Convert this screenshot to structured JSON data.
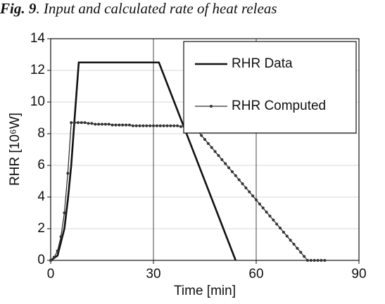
{
  "chart_data": {
    "type": "line",
    "title": [
      "Fig. 9",
      ". Input and calculated rate of heat releas"
    ],
    "x_label": "Time [min]",
    "y_label": "RHR [10⁶W]",
    "xlim": [
      0,
      90
    ],
    "xticks": [
      0,
      30,
      60,
      90
    ],
    "ylim": [
      0,
      14
    ],
    "yticks": [
      0,
      2,
      4,
      6,
      8,
      10,
      12,
      14
    ],
    "grid": true,
    "legend": "top-right",
    "series": [
      {
        "name": "RHR Data",
        "color": "#111111",
        "markers": false,
        "x": [
          0,
          2,
          4,
          5,
          6,
          7,
          8.2,
          31.6,
          54
        ],
        "values": [
          0,
          0.3,
          2,
          3.8,
          6,
          9,
          12.5,
          12.5,
          0
        ]
      },
      {
        "name": "RHR Computed",
        "color": "#333333",
        "markers": true,
        "x": [
          0,
          1,
          2,
          3,
          4,
          5,
          6,
          7,
          8,
          9,
          10,
          11,
          12,
          13,
          14,
          15,
          16,
          17,
          18,
          19,
          20,
          21,
          22,
          23,
          24,
          25,
          26,
          27,
          28,
          29,
          30,
          31,
          32,
          33,
          34,
          35,
          36,
          37,
          38,
          39,
          40,
          41,
          42,
          43,
          44,
          45,
          46,
          47,
          48,
          49,
          50,
          51,
          52,
          53,
          54,
          55,
          56,
          57,
          58,
          59,
          60,
          61,
          62,
          63,
          64,
          65,
          66,
          67,
          68,
          69,
          70,
          71,
          72,
          73,
          74,
          75,
          76,
          77,
          78,
          79,
          80
        ],
        "values": [
          0,
          0.2,
          0.6,
          1.5,
          3,
          5.5,
          8.7,
          8.7,
          8.7,
          8.7,
          8.7,
          8.65,
          8.65,
          8.6,
          8.6,
          8.6,
          8.6,
          8.6,
          8.55,
          8.55,
          8.55,
          8.55,
          8.55,
          8.55,
          8.5,
          8.5,
          8.5,
          8.5,
          8.5,
          8.5,
          8.5,
          8.5,
          8.5,
          8.5,
          8.5,
          8.5,
          8.5,
          8.5,
          8.45,
          8.45,
          8.45,
          8.4,
          8.4,
          8.15,
          7.89,
          7.64,
          7.38,
          7.13,
          6.87,
          6.62,
          6.36,
          6.11,
          5.85,
          5.6,
          5.35,
          5.09,
          4.84,
          4.58,
          4.33,
          4.07,
          3.82,
          3.56,
          3.31,
          3.05,
          2.8,
          2.55,
          2.29,
          2.04,
          1.78,
          1.53,
          1.27,
          1.02,
          0.76,
          0.51,
          0.25,
          0,
          0,
          0,
          0,
          0,
          0
        ]
      }
    ]
  }
}
